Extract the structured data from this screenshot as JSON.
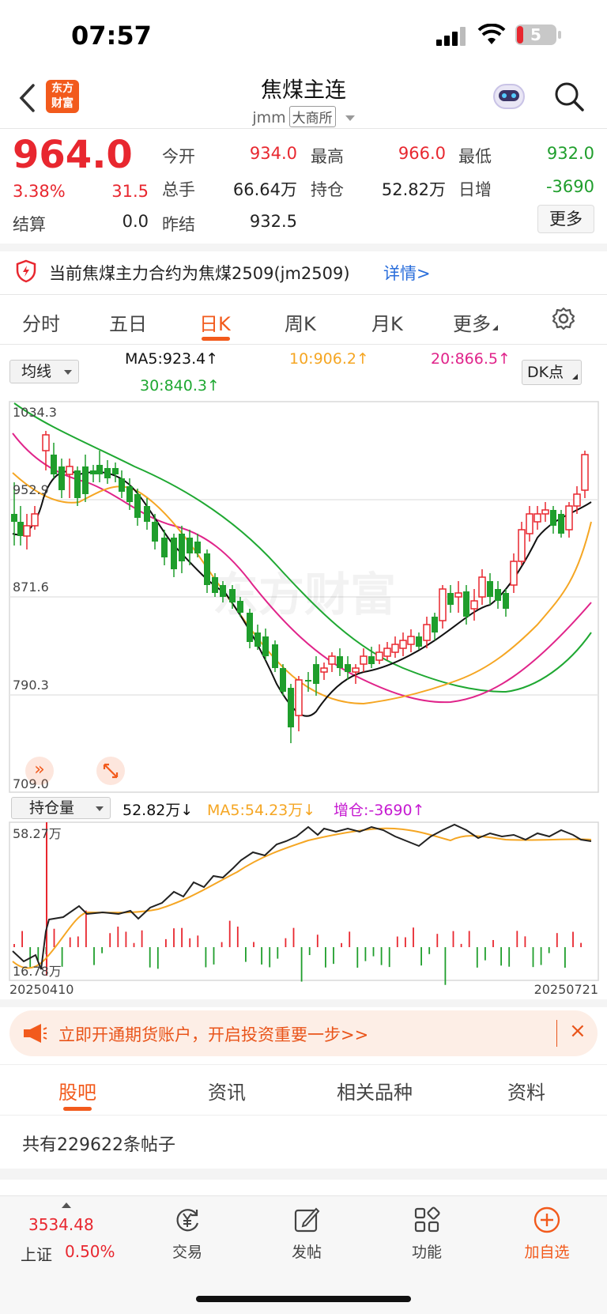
{
  "status": {
    "time": "07:57",
    "battery": "5"
  },
  "nav": {
    "title": "焦煤主连",
    "code": "jmm",
    "exchange": "大商所",
    "logo_line1": "东方",
    "logo_line2": "财富"
  },
  "quote": {
    "price": "964.0",
    "change_pct": "3.38%",
    "change_amt": "31.5",
    "fields": [
      {
        "label": "今开",
        "value": "934.0",
        "color": "red"
      },
      {
        "label": "最高",
        "value": "966.0",
        "color": "red"
      },
      {
        "label": "最低",
        "value": "932.0",
        "color": "green"
      },
      {
        "label": "总手",
        "value": "66.64万",
        "color": "black"
      },
      {
        "label": "持仓",
        "value": "52.82万",
        "color": "black"
      },
      {
        "label": "日增",
        "value": "-3690",
        "color": "green"
      },
      {
        "label": "结算",
        "value": "0.0",
        "color": "black"
      },
      {
        "label": "昨结",
        "value": "932.5",
        "color": "black"
      }
    ],
    "more_label": "更多"
  },
  "notice": {
    "text": "当前焦煤主力合约为焦煤2509(jm2509)",
    "link": "详情>"
  },
  "tabs": [
    "分时",
    "五日",
    "日K",
    "周K",
    "月K",
    "更多"
  ],
  "active_tab": 2,
  "chart": {
    "ma_selector": "均线",
    "ma5": "MA5:923.4↑",
    "ma10": "10:906.2↑",
    "ma20": "20:866.5↑",
    "ma30": "30:840.3↑",
    "dk_label": "DK点",
    "y_labels": [
      "1034.3",
      "952.9",
      "871.6",
      "790.3",
      "709.0"
    ],
    "watermark": "东方财富",
    "colors": {
      "ma5": "#111111",
      "ma10": "#f5a623",
      "ma20": "#e0248a",
      "ma30": "#1fa832",
      "up": "#e8272f",
      "down": "#1f9e2c"
    }
  },
  "sub_chart": {
    "selector": "持仓量",
    "value": "52.82万↓",
    "ma5": "MA5:54.23万↓",
    "change": "增仓:-3690↑",
    "y_top": "58.27万",
    "y_bottom": "16.78万",
    "date_start": "20250410",
    "date_end": "20250721"
  },
  "banner": {
    "text": "立即开通期货账户，开启投资重要一步>>"
  },
  "content_tabs": [
    "股吧",
    "资讯",
    "相关品种",
    "资料"
  ],
  "posts": {
    "text": "共有229622条帖子"
  },
  "bottom_bar": {
    "index_value": "3534.48",
    "index_name": "上证",
    "index_pct": "0.50%",
    "items": [
      "交易",
      "发帖",
      "功能",
      "加自选"
    ]
  }
}
